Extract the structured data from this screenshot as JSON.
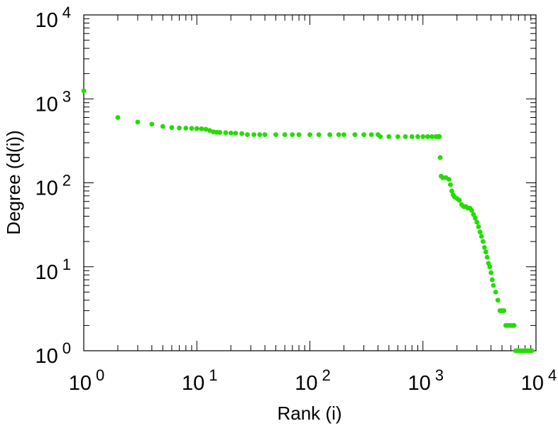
{
  "chart_data": {
    "type": "scatter",
    "title": "",
    "xlabel": "Rank (i)",
    "ylabel": "Degree (d(i))",
    "x_scale": "log",
    "y_scale": "log",
    "xlim": [
      1,
      10000
    ],
    "ylim": [
      1,
      10000
    ],
    "grid": false,
    "legend": "none",
    "point_color": "#22dd00",
    "x_ticks": [
      {
        "base": "10",
        "exp": "0",
        "value": 1
      },
      {
        "base": "10",
        "exp": "1",
        "value": 10
      },
      {
        "base": "10",
        "exp": "2",
        "value": 100
      },
      {
        "base": "10",
        "exp": "3",
        "value": 1000
      },
      {
        "base": "10",
        "exp": "4",
        "value": 10000
      }
    ],
    "y_ticks": [
      {
        "base": "10",
        "exp": "0",
        "value": 1
      },
      {
        "base": "10",
        "exp": "1",
        "value": 10
      },
      {
        "base": "10",
        "exp": "2",
        "value": 100
      },
      {
        "base": "10",
        "exp": "3",
        "value": 1000
      },
      {
        "base": "10",
        "exp": "4",
        "value": 10000
      }
    ],
    "series": [
      {
        "x": [
          1,
          2,
          3,
          4,
          5,
          6,
          7,
          8,
          9,
          10,
          11,
          12,
          13,
          14,
          15,
          16,
          18,
          20,
          22,
          25,
          28,
          32,
          36,
          40,
          50,
          60,
          70,
          80,
          100,
          120,
          150,
          180,
          200,
          250,
          300,
          350,
          400,
          420,
          500,
          600,
          700,
          800,
          900,
          1000,
          1100,
          1200,
          1300,
          1350,
          1380,
          1400,
          1420,
          1450,
          1500,
          1600,
          1700,
          1750,
          1800,
          1850,
          1900,
          2000,
          2100,
          2200,
          2300,
          2400,
          2500,
          2600,
          2700,
          2800,
          2900,
          3000,
          3100,
          3200,
          3300,
          3400,
          3500,
          3600,
          3700,
          3800,
          3900,
          4000,
          4100,
          4200,
          4400,
          4600,
          4800,
          5000,
          5200,
          5400,
          5600,
          5800,
          6000,
          6200,
          6400,
          6600,
          6800,
          7000,
          7300,
          7600,
          8000,
          8400,
          8800,
          9200
        ],
        "y": [
          1250,
          600,
          530,
          500,
          470,
          455,
          450,
          448,
          445,
          443,
          440,
          435,
          420,
          405,
          400,
          398,
          395,
          392,
          390,
          385,
          375,
          375,
          375,
          375,
          375,
          375,
          375,
          375,
          375,
          375,
          375,
          375,
          375,
          375,
          375,
          375,
          375,
          355,
          355,
          355,
          355,
          355,
          355,
          355,
          355,
          355,
          355,
          355,
          355,
          355,
          200,
          120,
          115,
          115,
          110,
          95,
          80,
          72,
          68,
          65,
          62,
          55,
          52,
          52,
          50,
          50,
          47,
          42,
          38,
          34,
          30,
          26,
          23,
          20,
          17,
          15,
          13,
          11,
          10,
          8.5,
          7,
          6,
          5,
          4,
          3,
          3,
          3,
          2,
          2,
          2,
          2,
          2,
          2,
          1,
          1,
          1,
          1,
          1,
          1,
          1,
          1,
          1
        ]
      }
    ]
  }
}
